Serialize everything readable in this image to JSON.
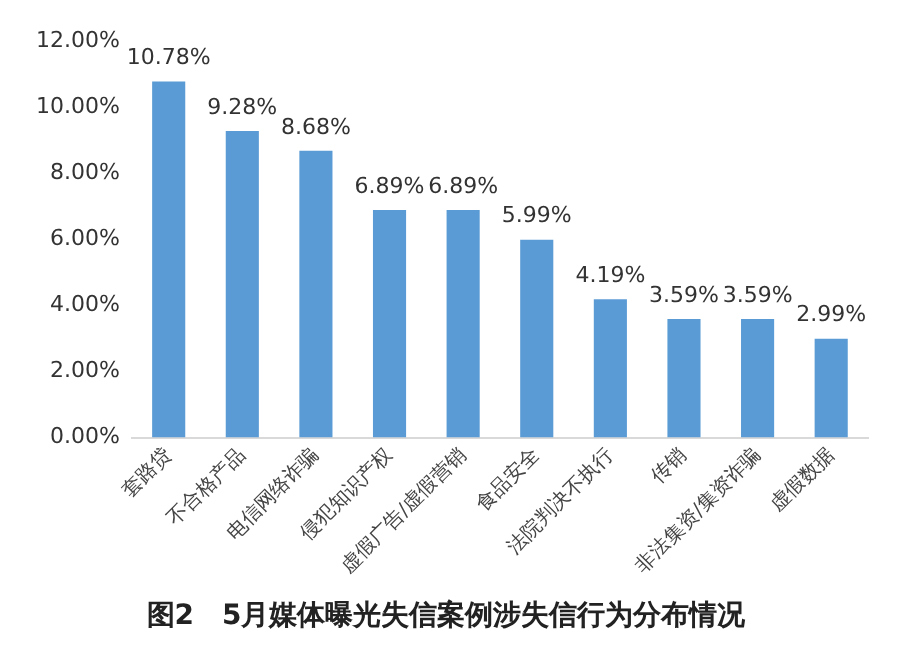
{
  "chart_data": {
    "type": "bar",
    "title": "图2　5月媒体曝光失信案例涉失信行为分布情况",
    "categories": [
      "套路贷",
      "不合格产品",
      "电信网络诈骗",
      "侵犯知识产权",
      "虚假广告/虚假营销",
      "食品安全",
      "法院判决不执行",
      "传销",
      "非法集资/集资诈骗",
      "虚假数据"
    ],
    "values": [
      10.78,
      9.28,
      8.68,
      6.89,
      6.89,
      5.99,
      4.19,
      3.59,
      3.59,
      2.99
    ],
    "value_labels": [
      "10.78%",
      "9.28%",
      "8.68%",
      "6.89%",
      "6.89%",
      "5.99%",
      "4.19%",
      "3.59%",
      "3.59%",
      "2.99%"
    ],
    "color": "#5b9bd5",
    "ylim": [
      0,
      12
    ],
    "yticks": [
      {
        "value": 0,
        "label": "0.00%"
      },
      {
        "value": 2,
        "label": "2.00%"
      },
      {
        "value": 4,
        "label": "4.00%"
      },
      {
        "value": 6,
        "label": "6.00%"
      },
      {
        "value": 8,
        "label": "8.00%"
      },
      {
        "value": 10,
        "label": "10.00%"
      },
      {
        "value": 12,
        "label": "12.00%"
      }
    ],
    "grid": false,
    "legend": false
  }
}
